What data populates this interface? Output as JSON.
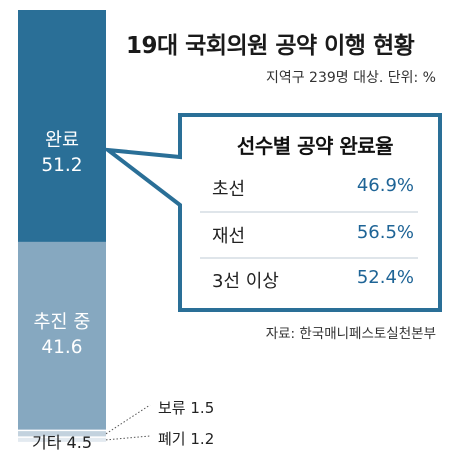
{
  "chart_data": {
    "type": "bar",
    "stacked": true,
    "title": "19대 국회의원 공약 이행 현황",
    "subtitle": "지역구 239명 대상.  단위: %",
    "source": "자료: 한국매니페스토실천본부",
    "segments": [
      {
        "label": "완료",
        "value": 51.2,
        "color": "#2a6f97"
      },
      {
        "label": "추진 중",
        "value": 41.6,
        "color": "#86a8c0"
      },
      {
        "label": "보류",
        "value": 1.5,
        "color": "#c3d2de"
      },
      {
        "label": "폐기",
        "value": 1.2,
        "color": "#e3eaf0"
      },
      {
        "label": "기타",
        "value": 4.5,
        "color": "#ffffff"
      }
    ],
    "callout": {
      "title": "선수별 공약 완료율",
      "rows": [
        {
          "label": "초선",
          "value": "46.9%"
        },
        {
          "label": "재선",
          "value": "56.5%"
        },
        {
          "label": "3선 이상",
          "value": "52.4%"
        }
      ]
    }
  }
}
